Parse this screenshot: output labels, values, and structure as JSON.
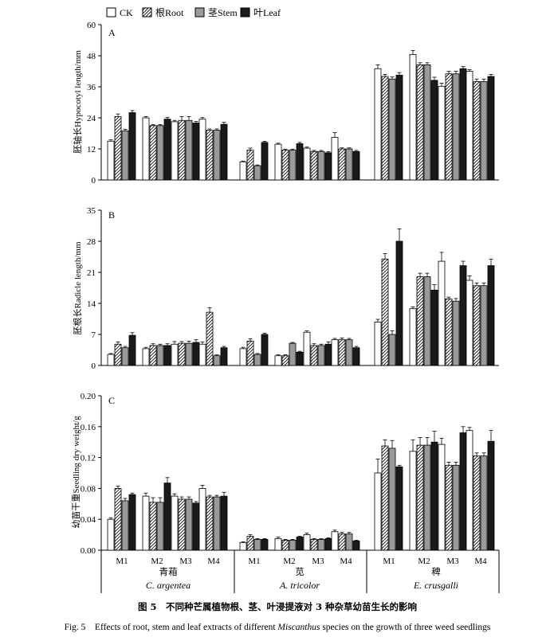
{
  "legend": [
    {
      "key": "ck",
      "label": "CK",
      "fill": "#ffffff",
      "pattern": false
    },
    {
      "key": "root",
      "label": "根Root",
      "fill": "#ffffff",
      "pattern": true
    },
    {
      "key": "stem",
      "label": "茎Stem",
      "fill": "#9a9a9a",
      "pattern": false
    },
    {
      "key": "leaf",
      "label": "叶Leaf",
      "fill": "#1a1a1a",
      "pattern": false
    }
  ],
  "chart_data": [
    {
      "type": "bar",
      "panel": "A",
      "ylabel": "胚轴长Hypocotyl length/mm",
      "ylim": [
        0,
        60
      ],
      "yticks": [
        "0",
        "12",
        "24",
        "36",
        "48",
        "60"
      ],
      "categories": [
        "M1",
        "M2",
        "M3",
        "M4",
        "M1",
        "M2",
        "M3",
        "M4",
        "M1",
        "M2",
        "M3",
        "M4"
      ],
      "series": [
        {
          "name": "CK",
          "values": [
            15.0,
            24.0,
            22.5,
            23.5,
            7.0,
            13.8,
            12.3,
            16.5,
            43.0,
            48.5,
            36.2,
            42.0
          ],
          "errors": [
            0.5,
            0.5,
            0.5,
            0.6,
            0.3,
            0.4,
            0.4,
            1.8,
            1.5,
            1.5,
            1.2,
            0.6
          ]
        },
        {
          "name": "Root",
          "values": [
            24.5,
            21.0,
            23.0,
            19.2,
            11.5,
            11.5,
            11.0,
            12.0,
            40.0,
            44.5,
            41.0,
            38.0
          ],
          "errors": [
            1.0,
            0.4,
            1.5,
            0.5,
            0.8,
            0.4,
            0.4,
            0.4,
            0.8,
            0.8,
            1.0,
            1.0
          ]
        },
        {
          "name": "Stem",
          "values": [
            19.0,
            21.0,
            23.0,
            19.2,
            5.5,
            11.5,
            11.0,
            12.0,
            39.0,
            44.5,
            41.0,
            38.0
          ],
          "errors": [
            0.6,
            0.4,
            1.5,
            0.5,
            0.3,
            0.4,
            0.4,
            0.4,
            0.8,
            0.8,
            1.0,
            1.0
          ]
        },
        {
          "name": "Leaf",
          "values": [
            26.0,
            23.5,
            22.0,
            21.5,
            14.5,
            14.0,
            10.5,
            11.0,
            40.5,
            38.5,
            43.0,
            40.0
          ],
          "errors": [
            0.8,
            0.7,
            0.6,
            0.8,
            0.4,
            0.5,
            0.4,
            0.4,
            1.0,
            1.2,
            0.8,
            0.8
          ]
        }
      ]
    },
    {
      "type": "bar",
      "panel": "B",
      "ylabel": "胚根长Radicle length/mm",
      "ylim": [
        0,
        35
      ],
      "yticks": [
        "0",
        "7",
        "14",
        "21",
        "28",
        "35"
      ],
      "categories": [
        "M1",
        "M2",
        "M3",
        "M4",
        "M1",
        "M2",
        "M3",
        "M4",
        "M1",
        "M2",
        "M3",
        "M4"
      ],
      "series": [
        {
          "name": "CK",
          "values": [
            2.5,
            3.8,
            4.8,
            4.8,
            3.8,
            2.2,
            7.5,
            5.8,
            9.8,
            12.8,
            23.5,
            19.2
          ],
          "errors": [
            0.2,
            0.3,
            0.6,
            0.5,
            0.3,
            0.2,
            0.3,
            0.3,
            0.6,
            0.4,
            2.0,
            1.0
          ]
        },
        {
          "name": "Root",
          "values": [
            4.8,
            4.5,
            5.0,
            12.0,
            5.5,
            2.2,
            4.5,
            5.8,
            24.0,
            20.0,
            15.0,
            18.0
          ],
          "errors": [
            0.5,
            0.4,
            0.4,
            1.0,
            0.5,
            0.2,
            0.4,
            0.4,
            1.2,
            0.8,
            0.4,
            0.6
          ]
        },
        {
          "name": "Stem",
          "values": [
            4.0,
            4.5,
            5.0,
            2.2,
            2.5,
            5.0,
            4.5,
            5.8,
            7.0,
            20.0,
            14.5,
            18.0
          ],
          "errors": [
            0.3,
            0.3,
            0.5,
            0.2,
            0.2,
            0.2,
            0.3,
            0.3,
            0.8,
            0.8,
            0.6,
            0.6
          ]
        },
        {
          "name": "Leaf",
          "values": [
            6.8,
            4.5,
            5.2,
            4.0,
            7.0,
            3.0,
            4.8,
            4.0,
            28.0,
            17.0,
            22.5,
            22.5
          ],
          "errors": [
            0.6,
            0.4,
            0.6,
            0.3,
            0.3,
            0.2,
            0.5,
            0.3,
            2.8,
            1.2,
            1.0,
            1.5
          ]
        }
      ]
    },
    {
      "type": "bar",
      "panel": "C",
      "ylabel": "幼苗干重Seedling dry weight/g",
      "ylim": [
        0,
        0.2
      ],
      "yticks": [
        "0.00",
        "0.04",
        "0.08",
        "0.12",
        "0.16",
        "0.20"
      ],
      "categories": [
        "M1",
        "M2",
        "M3",
        "M4",
        "M1",
        "M2",
        "M3",
        "M4",
        "M1",
        "M2",
        "M3",
        "M4"
      ],
      "series": [
        {
          "name": "CK",
          "values": [
            0.04,
            0.07,
            0.07,
            0.08,
            0.01,
            0.015,
            0.02,
            0.024,
            0.1,
            0.128,
            0.137,
            0.155
          ],
          "errors": [
            0.002,
            0.004,
            0.003,
            0.004,
            0.001,
            0.002,
            0.002,
            0.002,
            0.018,
            0.015,
            0.008,
            0.004
          ]
        },
        {
          "name": "Root",
          "values": [
            0.08,
            0.062,
            0.066,
            0.069,
            0.018,
            0.013,
            0.014,
            0.021,
            0.135,
            0.136,
            0.11,
            0.122
          ],
          "errors": [
            0.003,
            0.006,
            0.003,
            0.002,
            0.002,
            0.001,
            0.001,
            0.002,
            0.008,
            0.01,
            0.004,
            0.004
          ]
        },
        {
          "name": "Stem",
          "values": [
            0.064,
            0.062,
            0.066,
            0.069,
            0.014,
            0.013,
            0.014,
            0.021,
            0.132,
            0.136,
            0.11,
            0.122
          ],
          "errors": [
            0.003,
            0.006,
            0.003,
            0.002,
            0.001,
            0.001,
            0.001,
            0.002,
            0.01,
            0.01,
            0.004,
            0.004
          ]
        },
        {
          "name": "Leaf",
          "values": [
            0.072,
            0.087,
            0.061,
            0.07,
            0.014,
            0.017,
            0.015,
            0.012,
            0.108,
            0.14,
            0.152,
            0.141
          ],
          "errors": [
            0.002,
            0.007,
            0.002,
            0.005,
            0.001,
            0.001,
            0.001,
            0.001,
            0.002,
            0.014,
            0.008,
            0.014
          ]
        }
      ]
    }
  ],
  "groups": [
    {
      "cn": "青葙",
      "latin": "C. argentea"
    },
    {
      "cn": "苋",
      "latin": "A. tricolor"
    },
    {
      "cn": "稗",
      "latin": "E. crusgalli"
    }
  ],
  "caption": {
    "cn": "图 5　不同种芒属植物根、茎、叶浸提液对 3 种杂草幼苗生长的影响",
    "en_prefix": "Fig. 5　Effects of root, stem and leaf extracts of different ",
    "en_italic": "Miscanthus",
    "en_suffix": " species on the growth of three weed seedlings"
  }
}
